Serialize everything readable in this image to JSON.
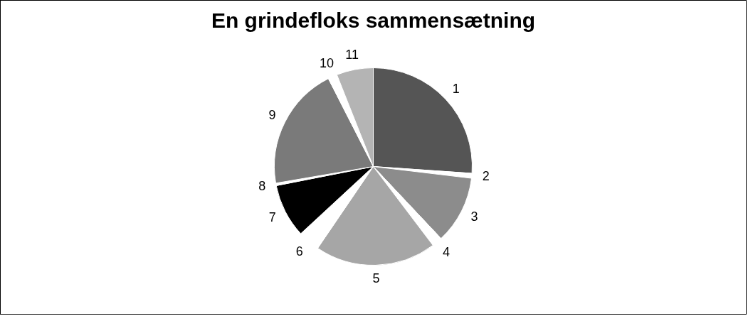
{
  "chart_data": {
    "type": "pie",
    "title": "En grindefloks sammensætning",
    "categories": [
      "1",
      "2",
      "3",
      "4",
      "5",
      "6",
      "7",
      "8",
      "9",
      "10",
      "11"
    ],
    "values": [
      26.1,
      0.8,
      11.1,
      1.7,
      19.8,
      3.6,
      8.8,
      0.4,
      20.2,
      1.5,
      6.0
    ],
    "colors": [
      "#555555",
      "#ffffff",
      "#8c8c8c",
      "#ffffff",
      "#a6a6a6",
      "#ffffff",
      "#000000",
      "#ffffff",
      "#7a7a7a",
      "#ffffff",
      "#b4b4b4"
    ],
    "legend": false
  }
}
